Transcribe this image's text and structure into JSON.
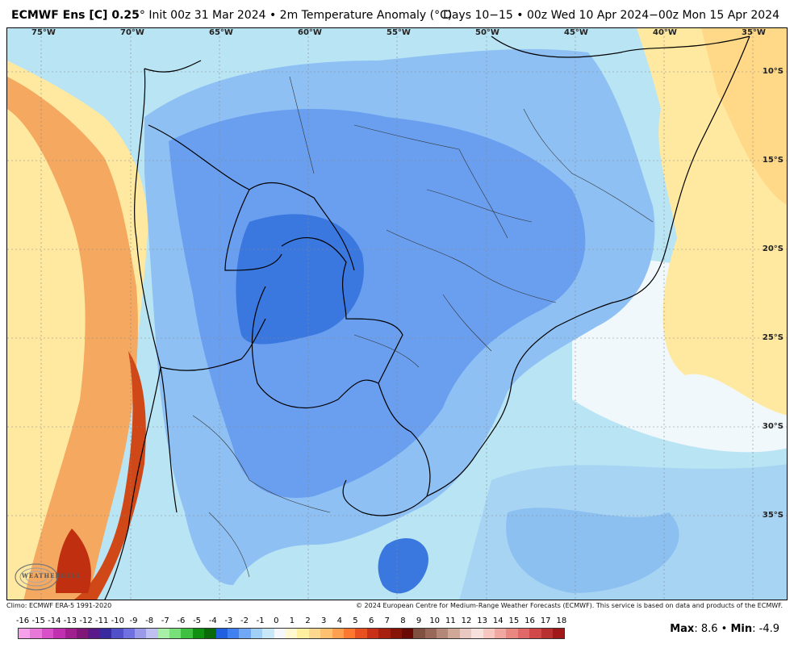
{
  "header": {
    "title_bold": "ECMWF Ens [C] 0.25",
    "title_rest": "° Init 00z 31 Mar 2024 • 2m Temperature Anomaly (°C)",
    "period": "Days 10−15 • 00z Wed 10 Apr 2024−00z Mon 15 Apr 2024"
  },
  "map": {
    "lon_labels": [
      "75°W",
      "70°W",
      "65°W",
      "60°W",
      "55°W",
      "50°W",
      "45°W",
      "40°W",
      "35°W"
    ],
    "lat_labels": [
      "10°S",
      "15°S",
      "20°S",
      "25°S",
      "30°S",
      "35°S"
    ],
    "watermark": "WEATHERBELL"
  },
  "footer": {
    "climo": "Climo: ECMWF ERA-5 1991-2020",
    "copyright": "© 2024 European Centre for Medium-Range Weather Forecasts (ECMWF). This service is based on data and products of the ECMWF."
  },
  "colorbar": {
    "ticks": [
      "-16",
      "-15",
      "-14",
      "-13",
      "-12",
      "-11",
      "-10",
      "-9",
      "-8",
      "-7",
      "-6",
      "-5",
      "-4",
      "-3",
      "-2",
      "-1",
      "0",
      "1",
      "2",
      "3",
      "4",
      "5",
      "6",
      "7",
      "8",
      "9",
      "10",
      "11",
      "12",
      "13",
      "14",
      "15",
      "16",
      "17",
      "18"
    ],
    "colors": [
      "#f5a0e8",
      "#e878d8",
      "#d850c8",
      "#c030b0",
      "#a02090",
      "#801878",
      "#5a1a8a",
      "#3a2aa0",
      "#5050c8",
      "#7070e0",
      "#9a9ae8",
      "#c0c0f0",
      "#a8f0a8",
      "#78e078",
      "#40c040",
      "#109010",
      "#0a6a0a",
      "#2060e0",
      "#4080f0",
      "#70a8f5",
      "#a0d0f8",
      "#c8e8fa",
      "#f4f8fc",
      "#fff8d0",
      "#fff0a0",
      "#ffd890",
      "#ffc070",
      "#ffa050",
      "#ff7830",
      "#e85020",
      "#c83018",
      "#a82010",
      "#881408",
      "#6a0a04",
      "#805040",
      "#9a6858",
      "#b48878",
      "#d0a898",
      "#e8c8c0",
      "#f8e0dc",
      "#f8c8c0",
      "#f0a8a0",
      "#e88880",
      "#e06868",
      "#d04848",
      "#b83030",
      "#a01818"
    ]
  },
  "stats": {
    "max_label": "Max",
    "max_value": ": 8.6 • ",
    "min_label": "Min",
    "min_value": ": -4.9"
  },
  "colors": {
    "ocean": "#a8dcf0",
    "cold_strong": "#3a78e0",
    "cold": "#6aa2ec",
    "cool": "#9ac8f4",
    "warm": "#ffe9a0",
    "hot": "#f08848",
    "very_hot": "#c83010"
  }
}
